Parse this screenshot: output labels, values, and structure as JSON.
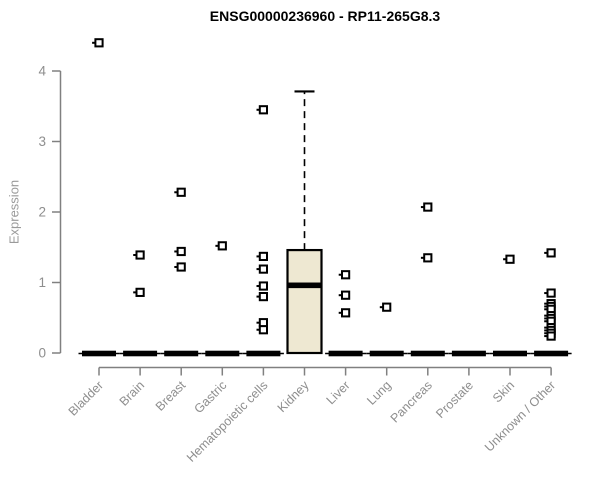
{
  "colors": {
    "background": "#FFFFFF",
    "title_text": "#000000",
    "axis": "#808080",
    "tick_text": "#8E8E8E",
    "axis_label_text": "#9A9A9A",
    "box_fill": "#EEE8D2",
    "box_stroke": "#000000",
    "median": "#000000",
    "outlier_fill": "#FFFFFF"
  },
  "chart_data": {
    "type": "boxplot",
    "title": "ENSG00000236960 - RP11-265G8.3",
    "xlabel": "",
    "ylabel": "Expression",
    "ylim": [
      0,
      4.55
    ],
    "yticks": [
      0,
      1,
      2,
      3,
      4
    ],
    "grid": false,
    "legend": false,
    "categories": [
      "Bladder",
      "Brain",
      "Breast",
      "Gastric",
      "Hematopoietic cells",
      "Kidney",
      "Liver",
      "Lung",
      "Pancreas",
      "Prostate",
      "Skin",
      "Unknown / Other"
    ],
    "series": [
      {
        "name": "Bladder",
        "whisker_low": 0,
        "q1": 0,
        "median": 0,
        "q3": 0,
        "whisker_high": 0,
        "outliers": [
          4.4
        ]
      },
      {
        "name": "Brain",
        "whisker_low": 0,
        "q1": 0,
        "median": 0,
        "q3": 0,
        "whisker_high": 0,
        "outliers": [
          1.39,
          0.86
        ]
      },
      {
        "name": "Breast",
        "whisker_low": 0,
        "q1": 0,
        "median": 0,
        "q3": 0,
        "whisker_high": 0,
        "outliers": [
          2.28,
          1.44,
          1.22
        ]
      },
      {
        "name": "Gastric",
        "whisker_low": 0,
        "q1": 0,
        "median": 0,
        "q3": 0,
        "whisker_high": 0,
        "outliers": [
          1.52
        ]
      },
      {
        "name": "Hematopoietic cells",
        "whisker_low": 0,
        "q1": 0,
        "median": 0,
        "q3": 0,
        "whisker_high": 0,
        "outliers": [
          3.45,
          1.37,
          1.19,
          0.95,
          0.8,
          0.43,
          0.33
        ]
      },
      {
        "name": "Kidney",
        "whisker_low": 0,
        "q1": 0,
        "median": 0.96,
        "q3": 1.46,
        "whisker_high": 3.71,
        "outliers": []
      },
      {
        "name": "Liver",
        "whisker_low": 0,
        "q1": 0,
        "median": 0,
        "q3": 0,
        "whisker_high": 0,
        "outliers": [
          1.11,
          0.82,
          0.57
        ]
      },
      {
        "name": "Lung",
        "whisker_low": 0,
        "q1": 0,
        "median": 0,
        "q3": 0,
        "whisker_high": 0,
        "outliers": [
          0.65
        ]
      },
      {
        "name": "Pancreas",
        "whisker_low": 0,
        "q1": 0,
        "median": 0,
        "q3": 0,
        "whisker_high": 0,
        "outliers": [
          2.07,
          1.35
        ]
      },
      {
        "name": "Prostate",
        "whisker_low": 0,
        "q1": 0,
        "median": 0,
        "q3": 0,
        "whisker_high": 0,
        "outliers": []
      },
      {
        "name": "Skin",
        "whisker_low": 0,
        "q1": 0,
        "median": 0,
        "q3": 0,
        "whisker_high": 0,
        "outliers": [
          1.33
        ]
      },
      {
        "name": "Unknown / Other",
        "whisker_low": 0,
        "q1": 0,
        "median": 0,
        "q3": 0,
        "whisker_high": 0,
        "outliers": [
          1.42,
          0.85,
          0.7,
          0.66,
          0.62,
          0.53,
          0.49,
          0.45,
          0.36,
          0.32,
          0.28,
          0.24
        ]
      }
    ]
  }
}
